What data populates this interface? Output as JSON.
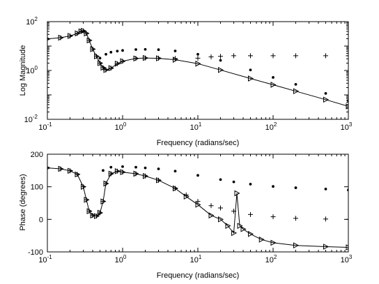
{
  "chart_data": [
    {
      "type": "line",
      "xscale": "log",
      "yscale": "log",
      "xlim": [
        0.1,
        1000
      ],
      "ylim": [
        0.01,
        100
      ],
      "xlabel": "Frequency (radians/sec)",
      "ylabel": "Log Magnitude",
      "grid": false,
      "xticks": [
        {
          "value": 0.1,
          "base": "10",
          "exp": "-1"
        },
        {
          "value": 1,
          "base": "10",
          "exp": "0"
        },
        {
          "value": 10,
          "base": "10",
          "exp": "1"
        },
        {
          "value": 100,
          "base": "10",
          "exp": "2"
        },
        {
          "value": 1000,
          "base": "10",
          "exp": "3"
        }
      ],
      "yticks": [
        {
          "value": 0.01,
          "base": "10",
          "exp": "-2"
        },
        {
          "value": 1,
          "base": "10",
          "exp": "0"
        },
        {
          "value": 100,
          "base": "10",
          "exp": "2"
        }
      ],
      "series": [
        {
          "marker": "solid-line",
          "x": [
            0.1,
            0.15,
            0.2,
            0.25,
            0.28,
            0.3,
            0.33,
            0.36,
            0.4,
            0.45,
            0.5,
            0.55,
            0.6,
            0.7,
            0.85,
            1,
            1.5,
            2,
            3,
            5,
            10,
            20,
            50,
            100,
            200,
            500,
            1000
          ],
          "y": [
            19.5,
            22,
            26,
            33,
            40,
            42,
            33,
            17,
            7.5,
            3.8,
            2,
            1.3,
            1.05,
            1.25,
            1.9,
            2.4,
            3.1,
            3.25,
            3.15,
            2.75,
            1.9,
            1.05,
            0.47,
            0.26,
            0.142,
            0.064,
            0.034
          ]
        },
        {
          "marker": "plus",
          "x": [
            0.1,
            0.15,
            0.2,
            0.25,
            0.28,
            0.3,
            0.33,
            0.36,
            0.4,
            0.45,
            0.5,
            0.55,
            0.6,
            0.7,
            0.85,
            1,
            1.5,
            2,
            3,
            5,
            10,
            15,
            20,
            30,
            50,
            100,
            200,
            500,
            1000
          ],
          "y": [
            19.5,
            22,
            26,
            33,
            40,
            42,
            33,
            17,
            7.5,
            3.8,
            2,
            1.3,
            1.05,
            1.25,
            1.9,
            2.4,
            3.1,
            3.25,
            3.2,
            3.1,
            3.2,
            3.6,
            3.8,
            4,
            4,
            4,
            4,
            4,
            4
          ]
        },
        {
          "marker": "dot",
          "x": [
            0.5,
            0.6,
            0.7,
            0.85,
            1,
            1.5,
            2,
            3,
            5,
            10,
            20,
            50,
            100,
            200,
            500,
            1000
          ],
          "y": [
            3.2,
            4.6,
            5.6,
            6.2,
            6.6,
            7.2,
            7.3,
            7.1,
            6.3,
            4.6,
            2.6,
            1.05,
            0.52,
            0.27,
            0.115,
            0.058
          ]
        },
        {
          "marker": "triangle-right",
          "x": [
            0.1,
            0.15,
            0.2,
            0.25,
            0.28,
            0.3,
            0.33,
            0.36,
            0.4,
            0.45,
            0.5,
            0.55,
            0.6,
            0.7,
            0.85,
            1,
            1.5,
            2,
            3,
            5,
            10,
            20,
            50,
            100,
            200,
            500,
            1000
          ],
          "y": [
            19.5,
            22,
            26,
            33,
            40,
            42,
            33,
            17,
            7.5,
            3.8,
            2,
            1.3,
            1.05,
            1.25,
            1.9,
            2.4,
            3.1,
            3.25,
            3.15,
            2.75,
            1.9,
            1.05,
            0.47,
            0.26,
            0.142,
            0.064,
            0.034
          ]
        }
      ]
    },
    {
      "type": "line",
      "xscale": "log",
      "yscale": "linear",
      "xlim": [
        0.1,
        1000
      ],
      "ylim": [
        -100,
        200
      ],
      "xlabel": "Frequency (radians/sec)",
      "ylabel": "Phase (degrees)",
      "grid": false,
      "xticks": [
        {
          "value": 0.1,
          "base": "10",
          "exp": "-1"
        },
        {
          "value": 1,
          "base": "10",
          "exp": "0"
        },
        {
          "value": 10,
          "base": "10",
          "exp": "1"
        },
        {
          "value": 100,
          "base": "10",
          "exp": "2"
        },
        {
          "value": 1000,
          "base": "10",
          "exp": "3"
        }
      ],
      "yticks": [
        {
          "value": -100,
          "text": "-100"
        },
        {
          "value": 0,
          "text": "0"
        },
        {
          "value": 100,
          "text": "100"
        },
        {
          "value": 200,
          "text": "200"
        }
      ],
      "series": [
        {
          "marker": "solid-line",
          "x": [
            0.1,
            0.15,
            0.2,
            0.25,
            0.3,
            0.33,
            0.36,
            0.4,
            0.45,
            0.5,
            0.55,
            0.6,
            0.7,
            0.85,
            1,
            1.5,
            2,
            3,
            5,
            7,
            10,
            15,
            20,
            25,
            30,
            33,
            36,
            40,
            50,
            70,
            100,
            200,
            500,
            1000
          ],
          "y": [
            158,
            155,
            149,
            138,
            100,
            60,
            25,
            12,
            10,
            20,
            55,
            110,
            140,
            148,
            145,
            140,
            133,
            120,
            95,
            70,
            45,
            12,
            0,
            -20,
            -42,
            80,
            -20,
            -30,
            -45,
            -62,
            -72,
            -80,
            -84,
            -86
          ]
        },
        {
          "marker": "plus",
          "x": [
            0.1,
            0.15,
            0.2,
            0.25,
            0.3,
            0.33,
            0.36,
            0.4,
            0.45,
            0.5,
            0.55,
            0.6,
            0.7,
            0.85,
            1,
            1.5,
            2,
            3,
            5,
            7,
            10,
            15,
            20,
            30,
            50,
            100,
            200,
            500,
            1000
          ],
          "y": [
            158,
            155,
            149,
            138,
            100,
            60,
            25,
            12,
            10,
            20,
            55,
            110,
            140,
            148,
            145,
            140,
            133,
            120,
            95,
            75,
            55,
            42,
            35,
            25,
            15,
            8,
            3,
            1,
            0
          ]
        },
        {
          "marker": "dot",
          "x": [
            0.55,
            0.7,
            1,
            1.5,
            2,
            3,
            5,
            10,
            20,
            30,
            50,
            100,
            200,
            500,
            1000
          ],
          "y": [
            150,
            160,
            162,
            160,
            158,
            155,
            148,
            135,
            122,
            115,
            108,
            101,
            97,
            93,
            90
          ]
        },
        {
          "marker": "triangle-right",
          "x": [
            0.1,
            0.15,
            0.2,
            0.25,
            0.3,
            0.33,
            0.36,
            0.4,
            0.45,
            0.5,
            0.55,
            0.6,
            0.7,
            0.85,
            1,
            1.5,
            2,
            3,
            5,
            7,
            10,
            15,
            20,
            25,
            30,
            33,
            36,
            40,
            50,
            70,
            100,
            200,
            500,
            1000
          ],
          "y": [
            158,
            155,
            149,
            138,
            100,
            60,
            25,
            12,
            10,
            20,
            55,
            110,
            140,
            148,
            145,
            140,
            133,
            120,
            95,
            70,
            45,
            12,
            0,
            -20,
            -42,
            80,
            -20,
            -30,
            -45,
            -62,
            -72,
            -80,
            -84,
            -86
          ]
        }
      ]
    }
  ]
}
